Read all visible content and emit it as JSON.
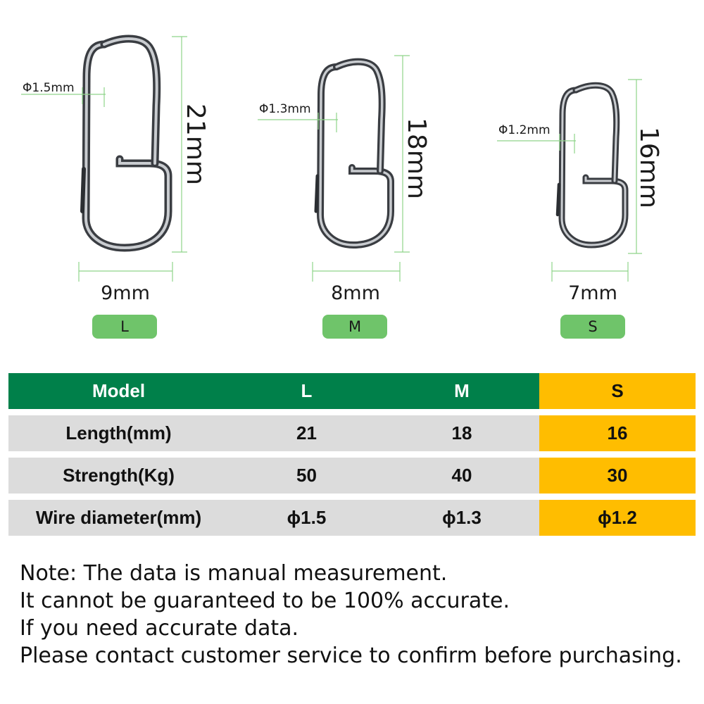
{
  "products": [
    {
      "size": "L",
      "height_label": "21mm",
      "width_label": "9mm",
      "wire_label": "Φ1.5mm"
    },
    {
      "size": "M",
      "height_label": "18mm",
      "width_label": "8mm",
      "wire_label": "Φ1.3mm"
    },
    {
      "size": "S",
      "height_label": "16mm",
      "width_label": "7mm",
      "wire_label": "Φ1.2mm"
    }
  ],
  "table": {
    "header": [
      "Model",
      "L",
      "M",
      "S"
    ],
    "rows": [
      [
        "Length(mm)",
        "21",
        "18",
        "16"
      ],
      [
        "Strength(Kg)",
        "50",
        "40",
        "30"
      ],
      [
        "Wire diameter(mm)",
        "ϕ1.5",
        "ϕ1.3",
        "ϕ1.2"
      ]
    ]
  },
  "note_lines": [
    "Note: The data is manual measurement.",
    "It cannot be guaranteed to be 100% accurate.",
    "If you need accurate data.",
    "Please contact customer service to confirm before purchasing."
  ],
  "colors": {
    "header_green": "#00804a",
    "highlight_yellow": "#ffbd00",
    "row_gray": "#dcdcdc",
    "badge_green": "#6fc46a",
    "dimension_line": "#8fd48a",
    "metal": "#6e7277"
  }
}
